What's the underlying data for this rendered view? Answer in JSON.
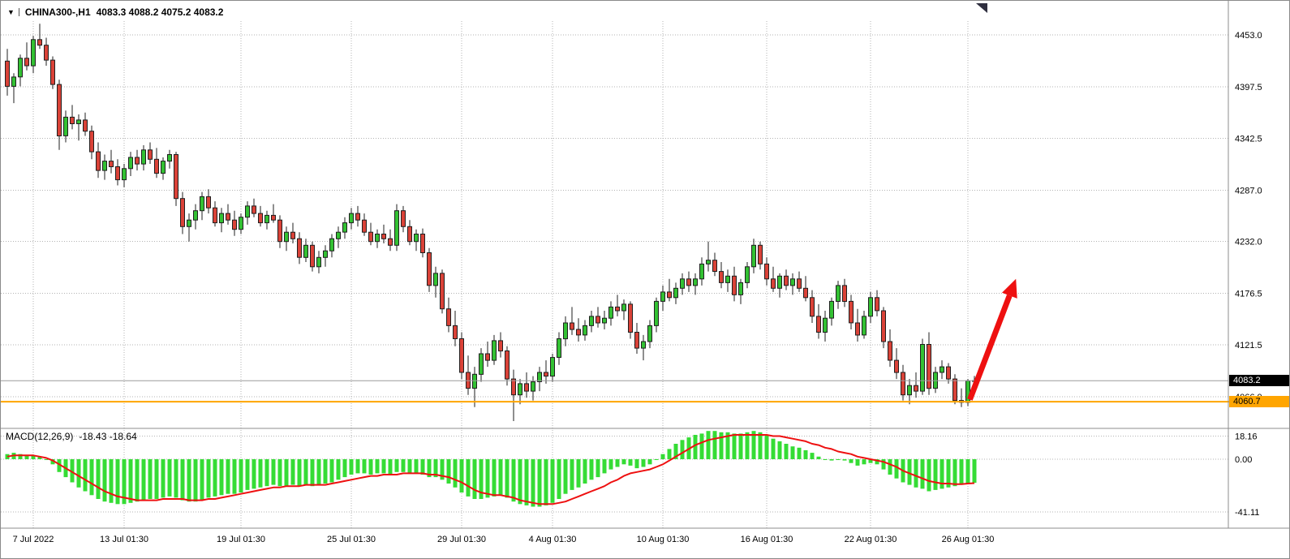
{
  "header": {
    "menu_icon": "▼",
    "symbol": "CHINA300-,H1",
    "quote": "4083.3 4088.2 4075.2 4083.2"
  },
  "indicator": {
    "label": "MACD(12,26,9)",
    "values": "-18.43 -18.64"
  },
  "axis": {
    "bid_tag": "4083.2",
    "support_tag": "4060.7"
  },
  "chart_data": [
    {
      "type": "candlestick",
      "title": "CHINA300-,H1",
      "timeframe": "H1",
      "last_quote": {
        "open": 4083.3,
        "high": 4088.2,
        "low": 4075.2,
        "close": 4083.2
      },
      "bid_price": 4083.2,
      "horizontal_line": 4060.7,
      "y_range": [
        4037,
        4468
      ],
      "grid": true,
      "y_ticks": [
        "4453.0",
        "4397.5",
        "4342.5",
        "4287.0",
        "4232.0",
        "4176.5",
        "4121.5",
        "4066.0"
      ],
      "x_ticks": [
        {
          "index": 4,
          "label": "7 Jul 2022"
        },
        {
          "index": 18,
          "label": "13 Jul 01:30"
        },
        {
          "index": 36,
          "label": "19 Jul 01:30"
        },
        {
          "index": 53,
          "label": "25 Jul 01:30"
        },
        {
          "index": 70,
          "label": "29 Jul 01:30"
        },
        {
          "index": 84,
          "label": "4 Aug 01:30"
        },
        {
          "index": 101,
          "label": "10 Aug 01:30"
        },
        {
          "index": 117,
          "label": "16 Aug 01:30"
        },
        {
          "index": 133,
          "label": "22 Aug 01:30"
        },
        {
          "index": 148,
          "label": "26 Aug 01:30"
        }
      ],
      "trend_arrow": {
        "from": {
          "index": 148.3,
          "price": 4063
        },
        "to": {
          "index": 155.4,
          "price": 4192
        },
        "color": "#ee1010"
      },
      "colors": {
        "up": "#33c133",
        "down": "#da4238",
        "outline": "#1f1f1f",
        "grid": "#b3b3b3",
        "hline": "#ffa500",
        "bidline": "#9a9a9a"
      },
      "ohlc": [
        [
          4425,
          4438,
          4388,
          4398
        ],
        [
          4398,
          4412,
          4380,
          4408
        ],
        [
          4408,
          4432,
          4398,
          4428
        ],
        [
          4428,
          4445,
          4415,
          4420
        ],
        [
          4420,
          4452,
          4412,
          4448
        ],
        [
          4448,
          4465,
          4438,
          4442
        ],
        [
          4442,
          4450,
          4420,
          4426
        ],
        [
          4426,
          4430,
          4395,
          4400
        ],
        [
          4400,
          4405,
          4330,
          4345
        ],
        [
          4345,
          4372,
          4338,
          4365
        ],
        [
          4365,
          4378,
          4352,
          4358
        ],
        [
          4358,
          4368,
          4340,
          4362
        ],
        [
          4362,
          4370,
          4345,
          4350
        ],
        [
          4350,
          4356,
          4320,
          4328
        ],
        [
          4328,
          4338,
          4300,
          4308
        ],
        [
          4308,
          4325,
          4298,
          4318
        ],
        [
          4318,
          4330,
          4305,
          4312
        ],
        [
          4312,
          4320,
          4292,
          4298
        ],
        [
          4298,
          4315,
          4290,
          4310
        ],
        [
          4310,
          4328,
          4302,
          4322
        ],
        [
          4322,
          4330,
          4308,
          4315
        ],
        [
          4315,
          4335,
          4308,
          4330
        ],
        [
          4330,
          4338,
          4315,
          4320
        ],
        [
          4320,
          4332,
          4300,
          4305
        ],
        [
          4305,
          4322,
          4298,
          4318
        ],
        [
          4318,
          4330,
          4310,
          4325
        ],
        [
          4325,
          4328,
          4270,
          4278
        ],
        [
          4278,
          4285,
          4240,
          4248
        ],
        [
          4248,
          4262,
          4232,
          4255
        ],
        [
          4255,
          4272,
          4245,
          4265
        ],
        [
          4265,
          4285,
          4255,
          4280
        ],
        [
          4280,
          4288,
          4262,
          4268
        ],
        [
          4268,
          4275,
          4248,
          4252
        ],
        [
          4252,
          4268,
          4242,
          4262
        ],
        [
          4262,
          4272,
          4250,
          4255
        ],
        [
          4255,
          4265,
          4238,
          4245
        ],
        [
          4245,
          4262,
          4240,
          4258
        ],
        [
          4258,
          4275,
          4250,
          4270
        ],
        [
          4270,
          4278,
          4258,
          4262
        ],
        [
          4262,
          4270,
          4248,
          4252
        ],
        [
          4252,
          4265,
          4245,
          4260
        ],
        [
          4260,
          4272,
          4252,
          4255
        ],
        [
          4255,
          4260,
          4225,
          4232
        ],
        [
          4232,
          4248,
          4222,
          4242
        ],
        [
          4242,
          4252,
          4230,
          4235
        ],
        [
          4235,
          4242,
          4208,
          4215
        ],
        [
          4215,
          4235,
          4210,
          4228
        ],
        [
          4228,
          4232,
          4200,
          4205
        ],
        [
          4205,
          4222,
          4198,
          4215
        ],
        [
          4215,
          4228,
          4205,
          4222
        ],
        [
          4222,
          4240,
          4215,
          4235
        ],
        [
          4235,
          4248,
          4225,
          4242
        ],
        [
          4242,
          4258,
          4235,
          4252
        ],
        [
          4252,
          4268,
          4245,
          4262
        ],
        [
          4262,
          4270,
          4248,
          4255
        ],
        [
          4255,
          4262,
          4238,
          4242
        ],
        [
          4242,
          4252,
          4228,
          4232
        ],
        [
          4232,
          4245,
          4225,
          4240
        ],
        [
          4240,
          4250,
          4230,
          4235
        ],
        [
          4235,
          4245,
          4222,
          4228
        ],
        [
          4228,
          4272,
          4222,
          4265
        ],
        [
          4265,
          4270,
          4242,
          4248
        ],
        [
          4248,
          4255,
          4228,
          4232
        ],
        [
          4232,
          4245,
          4222,
          4240
        ],
        [
          4240,
          4246,
          4215,
          4220
        ],
        [
          4220,
          4225,
          4178,
          4185
        ],
        [
          4185,
          4205,
          4172,
          4198
        ],
        [
          4198,
          4202,
          4155,
          4160
        ],
        [
          4160,
          4172,
          4135,
          4142
        ],
        [
          4142,
          4158,
          4120,
          4128
        ],
        [
          4128,
          4135,
          4085,
          4092
        ],
        [
          4092,
          4110,
          4068,
          4075
        ],
        [
          4075,
          4098,
          4055,
          4090
        ],
        [
          4090,
          4118,
          4082,
          4112
        ],
        [
          4112,
          4125,
          4098,
          4105
        ],
        [
          4105,
          4132,
          4100,
          4126
        ],
        [
          4126,
          4135,
          4108,
          4115
        ],
        [
          4115,
          4120,
          4078,
          4085
        ],
        [
          4085,
          4095,
          4040,
          4068
        ],
        [
          4068,
          4085,
          4058,
          4080
        ],
        [
          4080,
          4092,
          4065,
          4072
        ],
        [
          4072,
          4088,
          4062,
          4082
        ],
        [
          4082,
          4098,
          4072,
          4092
        ],
        [
          4092,
          4105,
          4080,
          4088
        ],
        [
          4088,
          4112,
          4082,
          4108
        ],
        [
          4108,
          4135,
          4100,
          4128
        ],
        [
          4128,
          4152,
          4120,
          4145
        ],
        [
          4145,
          4162,
          4132,
          4138
        ],
        [
          4138,
          4150,
          4125,
          4132
        ],
        [
          4132,
          4148,
          4126,
          4142
        ],
        [
          4142,
          4158,
          4135,
          4152
        ],
        [
          4152,
          4162,
          4140,
          4145
        ],
        [
          4145,
          4158,
          4138,
          4150
        ],
        [
          4150,
          4168,
          4142,
          4162
        ],
        [
          4162,
          4175,
          4152,
          4158
        ],
        [
          4158,
          4170,
          4148,
          4165
        ],
        [
          4165,
          4168,
          4128,
          4135
        ],
        [
          4135,
          4145,
          4112,
          4118
        ],
        [
          4118,
          4132,
          4105,
          4125
        ],
        [
          4125,
          4148,
          4118,
          4142
        ],
        [
          4142,
          4172,
          4135,
          4168
        ],
        [
          4168,
          4185,
          4158,
          4178
        ],
        [
          4178,
          4192,
          4168,
          4172
        ],
        [
          4172,
          4188,
          4165,
          4182
        ],
        [
          4182,
          4198,
          4175,
          4192
        ],
        [
          4192,
          4200,
          4178,
          4185
        ],
        [
          4185,
          4198,
          4175,
          4192
        ],
        [
          4192,
          4215,
          4185,
          4208
        ],
        [
          4208,
          4232,
          4200,
          4212
        ],
        [
          4212,
          4220,
          4195,
          4200
        ],
        [
          4200,
          4210,
          4182,
          4188
        ],
        [
          4188,
          4202,
          4178,
          4195
        ],
        [
          4195,
          4205,
          4168,
          4175
        ],
        [
          4175,
          4192,
          4165,
          4188
        ],
        [
          4188,
          4210,
          4182,
          4205
        ],
        [
          4205,
          4235,
          4198,
          4228
        ],
        [
          4228,
          4232,
          4202,
          4208
        ],
        [
          4208,
          4215,
          4185,
          4192
        ],
        [
          4192,
          4205,
          4178,
          4182
        ],
        [
          4182,
          4198,
          4172,
          4195
        ],
        [
          4195,
          4202,
          4180,
          4185
        ],
        [
          4185,
          4198,
          4175,
          4192
        ],
        [
          4192,
          4200,
          4178,
          4182
        ],
        [
          4182,
          4195,
          4168,
          4172
        ],
        [
          4172,
          4180,
          4145,
          4152
        ],
        [
          4152,
          4165,
          4128,
          4135
        ],
        [
          4135,
          4158,
          4125,
          4150
        ],
        [
          4150,
          4172,
          4142,
          4168
        ],
        [
          4168,
          4190,
          4160,
          4185
        ],
        [
          4185,
          4192,
          4162,
          4168
        ],
        [
          4168,
          4175,
          4138,
          4145
        ],
        [
          4145,
          4160,
          4125,
          4132
        ],
        [
          4132,
          4158,
          4128,
          4152
        ],
        [
          4152,
          4178,
          4145,
          4172
        ],
        [
          4172,
          4180,
          4152,
          4158
        ],
        [
          4158,
          4162,
          4118,
          4125
        ],
        [
          4125,
          4138,
          4098,
          4105
        ],
        [
          4105,
          4118,
          4085,
          4092
        ],
        [
          4092,
          4100,
          4062,
          4068
        ],
        [
          4068,
          4085,
          4058,
          4078
        ],
        [
          4078,
          4092,
          4065,
          4072
        ],
        [
          4072,
          4128,
          4068,
          4122
        ],
        [
          4122,
          4135,
          4068,
          4075
        ],
        [
          4075,
          4098,
          4070,
          4092
        ],
        [
          4092,
          4105,
          4085,
          4098
        ],
        [
          4098,
          4102,
          4080,
          4085
        ],
        [
          4085,
          4090,
          4058,
          4062
        ],
        [
          4062,
          4075,
          4055,
          4060
        ],
        [
          4060,
          4085,
          4056,
          4083
        ],
        [
          4083.3,
          4088.2,
          4075.2,
          4083.2
        ]
      ]
    },
    {
      "type": "bar+line",
      "label": "MACD(12,26,9)",
      "current": {
        "macd": -18.43,
        "signal": -18.64
      },
      "y_ticks": [
        "18.16",
        "0.00",
        "-41.11"
      ],
      "y_range": [
        -52.5,
        23.4
      ],
      "colors": {
        "histogram": "#35dc35",
        "signal": "#ee1010"
      },
      "histogram": [
        4,
        5,
        4,
        3,
        3,
        2,
        0,
        -4,
        -10,
        -14,
        -18,
        -22,
        -25,
        -28,
        -31,
        -33,
        -34,
        -35,
        -35,
        -34,
        -33,
        -32,
        -31,
        -31,
        -30,
        -29,
        -30,
        -32,
        -33,
        -33,
        -32,
        -30,
        -29,
        -28,
        -27,
        -27,
        -26,
        -24,
        -23,
        -22,
        -21,
        -20,
        -21,
        -21,
        -20,
        -21,
        -20,
        -21,
        -20,
        -19,
        -18,
        -16,
        -14,
        -12,
        -11,
        -11,
        -12,
        -11,
        -11,
        -12,
        -10,
        -10,
        -11,
        -11,
        -12,
        -14,
        -14,
        -16,
        -19,
        -22,
        -26,
        -29,
        -31,
        -31,
        -30,
        -29,
        -28,
        -30,
        -33,
        -35,
        -36,
        -37,
        -37,
        -36,
        -34,
        -31,
        -27,
        -24,
        -22,
        -19,
        -16,
        -14,
        -11,
        -8,
        -6,
        -4,
        -5,
        -7,
        -6,
        -4,
        0,
        4,
        8,
        12,
        15,
        17,
        19,
        20,
        22,
        22,
        21,
        21,
        20,
        20,
        21,
        22,
        21,
        19,
        16,
        14,
        12,
        10,
        9,
        7,
        5,
        2,
        0,
        -1,
        0,
        -1,
        -3,
        -5,
        -4,
        -3,
        -4,
        -8,
        -12,
        -15,
        -18,
        -20,
        -22,
        -23,
        -25,
        -24,
        -23,
        -22,
        -21,
        -20,
        -19,
        -18.43
      ],
      "signal": [
        2,
        3,
        3,
        3,
        3,
        2,
        1,
        -1,
        -4,
        -7,
        -10,
        -13,
        -16,
        -19,
        -22,
        -25,
        -27,
        -29,
        -30,
        -31,
        -32,
        -32,
        -32,
        -32,
        -31,
        -31,
        -31,
        -31,
        -32,
        -32,
        -32,
        -31,
        -31,
        -30,
        -29,
        -28,
        -27,
        -26,
        -25,
        -24,
        -23,
        -22,
        -22,
        -21,
        -21,
        -21,
        -20,
        -20,
        -20,
        -20,
        -19,
        -18,
        -17,
        -16,
        -15,
        -14,
        -13,
        -13,
        -12,
        -12,
        -12,
        -11,
        -11,
        -11,
        -11,
        -12,
        -12,
        -13,
        -14,
        -16,
        -18,
        -21,
        -24,
        -26,
        -27,
        -28,
        -28,
        -29,
        -30,
        -32,
        -33,
        -34,
        -35,
        -35,
        -35,
        -34,
        -33,
        -31,
        -29,
        -27,
        -25,
        -23,
        -21,
        -18,
        -16,
        -13,
        -11,
        -10,
        -9,
        -8,
        -6,
        -4,
        -1,
        2,
        5,
        8,
        11,
        13,
        15,
        16,
        17,
        18,
        19,
        19,
        19,
        19,
        19,
        19,
        18,
        18,
        17,
        16,
        15,
        14,
        12,
        11,
        9,
        8,
        6,
        5,
        4,
        2,
        1,
        0,
        -1,
        -2,
        -4,
        -6,
        -9,
        -11,
        -13,
        -15,
        -17,
        -18,
        -19,
        -19,
        -19.5,
        -19.5,
        -19,
        -18.64
      ]
    }
  ]
}
